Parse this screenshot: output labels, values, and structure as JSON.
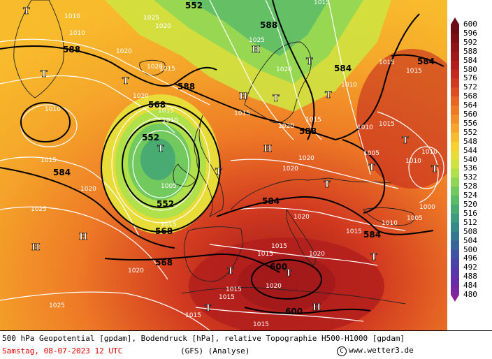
{
  "map": {
    "centers": [
      {
        "kind": "T"
      },
      {
        "kind": "T"
      },
      {
        "kind": "T"
      },
      {
        "kind": "T"
      },
      {
        "kind": "H"
      },
      {
        "kind": "H"
      },
      {
        "kind": "T"
      },
      {
        "kind": "H"
      },
      {
        "kind": "T"
      },
      {
        "kind": "T"
      },
      {
        "kind": "T"
      },
      {
        "kind": "T"
      },
      {
        "kind": "T"
      },
      {
        "kind": "H"
      },
      {
        "kind": "H"
      },
      {
        "kind": "T"
      },
      {
        "kind": "T"
      },
      {
        "kind": "T"
      },
      {
        "kind": "T"
      },
      {
        "kind": "T"
      },
      {
        "kind": "H"
      },
      {
        "kind": "T"
      }
    ],
    "geopotential_labels": [
      "552",
      "588",
      "588",
      "568",
      "552",
      "552",
      "568",
      "588",
      "588",
      "584",
      "584",
      "568",
      "584",
      "600",
      "600",
      "584",
      "584"
    ],
    "pressure_labels": [
      "1010",
      "1010",
      "1020",
      "1025",
      "1020",
      "1020",
      "1015",
      "1020",
      "1010",
      "1015",
      "1020",
      "1025",
      "1020",
      "1010",
      "1015",
      "1015",
      "1020",
      "1020",
      "1025",
      "1005",
      "1015",
      "1010",
      "1020",
      "1020",
      "1015",
      "1010",
      "1015",
      "1020",
      "1015",
      "1020",
      "1015",
      "1015",
      "1010",
      "1010",
      "1015",
      "1005",
      "1010",
      "1000",
      "1005",
      "1020",
      "1015",
      "1025",
      "1015",
      "1015",
      "1015",
      "1015",
      "1015"
    ]
  },
  "legend": {
    "title": "gpdam",
    "values": [
      "600",
      "596",
      "592",
      "588",
      "584",
      "580",
      "576",
      "572",
      "568",
      "564",
      "560",
      "556",
      "552",
      "548",
      "544",
      "540",
      "536",
      "532",
      "528",
      "524",
      "520",
      "516",
      "512",
      "508",
      "504",
      "500",
      "496",
      "492",
      "488",
      "484",
      "480"
    ],
    "colors": [
      "#6a0d14",
      "#7d1016",
      "#8e1418",
      "#a0181a",
      "#b31e1c",
      "#c4281e",
      "#d23a20",
      "#df4e22",
      "#e86424",
      "#ee7a26",
      "#f28f28",
      "#f5a52a",
      "#f8bb2c",
      "#f6cf30",
      "#e7dc38",
      "#cfe340",
      "#b0e04a",
      "#90d654",
      "#72c95e",
      "#5abb68",
      "#49ab72",
      "#3e9a7c",
      "#378986",
      "#347790",
      "#37659a",
      "#3f53a2",
      "#4a43a8",
      "#5836aa",
      "#692ca8",
      "#7a25a2",
      "#8b2098"
    ]
  },
  "footer": {
    "line1": "500 hPa Geopotential [gpdam], Bodendruck [hPa], relative Topographie H500-H1000 [gpdam]",
    "date": "Samstag, 08-07-2023  12 UTC",
    "model": "(GFS)  (Analyse)",
    "copyright_symbol": "C",
    "credit": "www.wetter3.de"
  }
}
